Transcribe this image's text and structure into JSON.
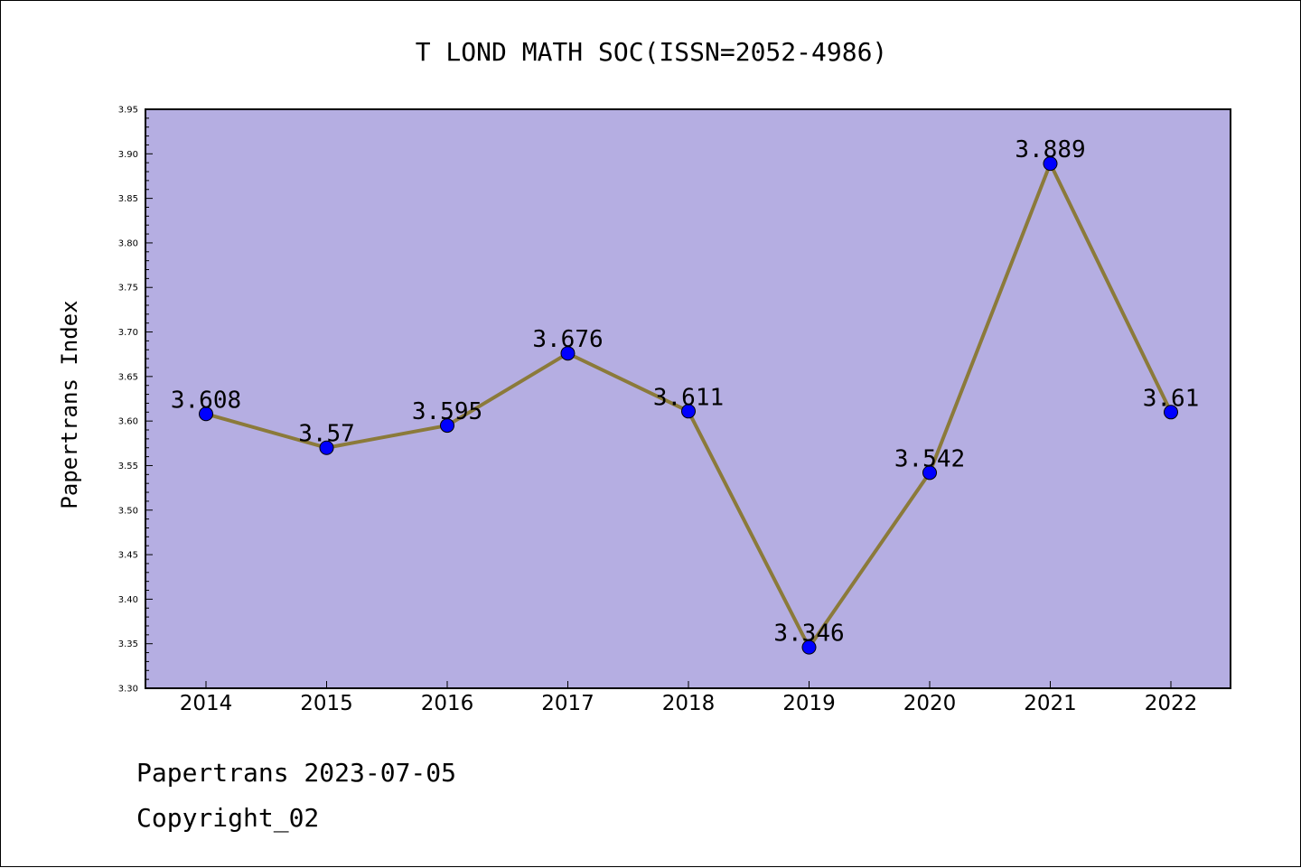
{
  "footer": {
    "line1": "Papertrans 2023-07-05",
    "line2": "Copyright_02"
  },
  "colors": {
    "plot_background": "#b5aee2",
    "line": "#8b7a3a",
    "marker": "#0000ff"
  },
  "chart_data": {
    "type": "line",
    "title": "T LOND MATH SOC(ISSN=2052-4986)",
    "xlabel": "",
    "ylabel": "Papertrans Index",
    "categories": [
      "2014",
      "2015",
      "2016",
      "2017",
      "2018",
      "2019",
      "2020",
      "2021",
      "2022"
    ],
    "values": [
      3.608,
      3.57,
      3.595,
      3.676,
      3.611,
      3.346,
      3.542,
      3.889,
      3.61
    ],
    "data_labels": [
      "3.608",
      "3.57",
      "3.595",
      "3.676",
      "3.611",
      "3.346",
      "3.542",
      "3.889",
      "3.61"
    ],
    "ylim": [
      3.3,
      3.95
    ],
    "yticks": [
      "3.30",
      "3.35",
      "3.40",
      "3.45",
      "3.50",
      "3.55",
      "3.60",
      "3.65",
      "3.70",
      "3.75",
      "3.80",
      "3.85",
      "3.90",
      "3.95"
    ],
    "grid": false,
    "legend": "none"
  }
}
